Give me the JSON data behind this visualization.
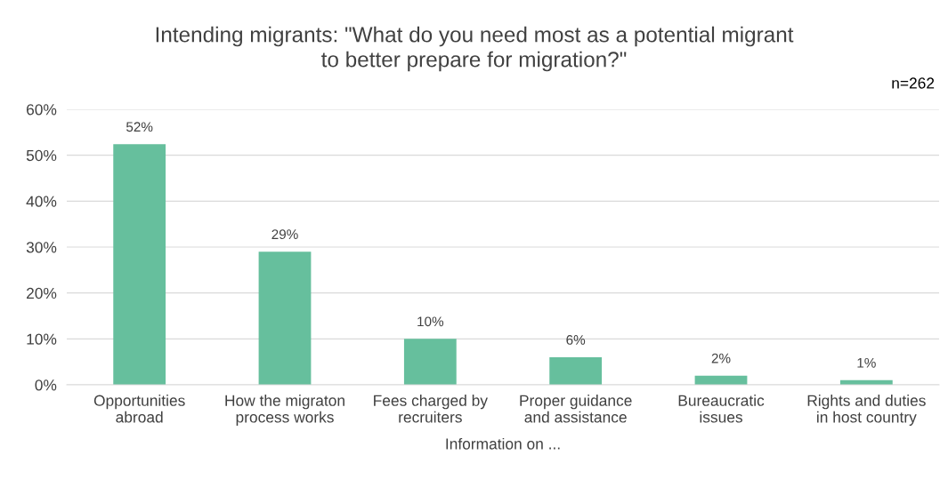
{
  "chart_data": {
    "type": "bar",
    "title": "Intending migrants: \"What do you need most as a potential migrant\nto better prepare for migration?\"",
    "xlabel": "Information on ...",
    "annotations": [
      "n=262"
    ],
    "categories": [
      "Opportunities\nabroad",
      "How the migraton\nprocess works",
      "Fees charged by\nrecruiters",
      "Proper guidance\nand assistance",
      "Bureaucratic\nissues",
      "Rights and duties\nin host country"
    ],
    "values": [
      52.4,
      29,
      10,
      6,
      2,
      1
    ],
    "value_labels": [
      "52%",
      "29%",
      "10%",
      "6%",
      "2%",
      "1%"
    ],
    "color": "#66bf9d",
    "ylim": [
      0,
      60
    ],
    "yticks": [
      {
        "value": 0,
        "label": "0%"
      },
      {
        "value": 10,
        "label": "10%"
      },
      {
        "value": 20,
        "label": "20%"
      },
      {
        "value": 30,
        "label": "30%"
      },
      {
        "value": 40,
        "label": "40%"
      },
      {
        "value": 50,
        "label": "50%"
      },
      {
        "value": 60,
        "label": "60%"
      }
    ],
    "grid": "y",
    "legend": false
  }
}
